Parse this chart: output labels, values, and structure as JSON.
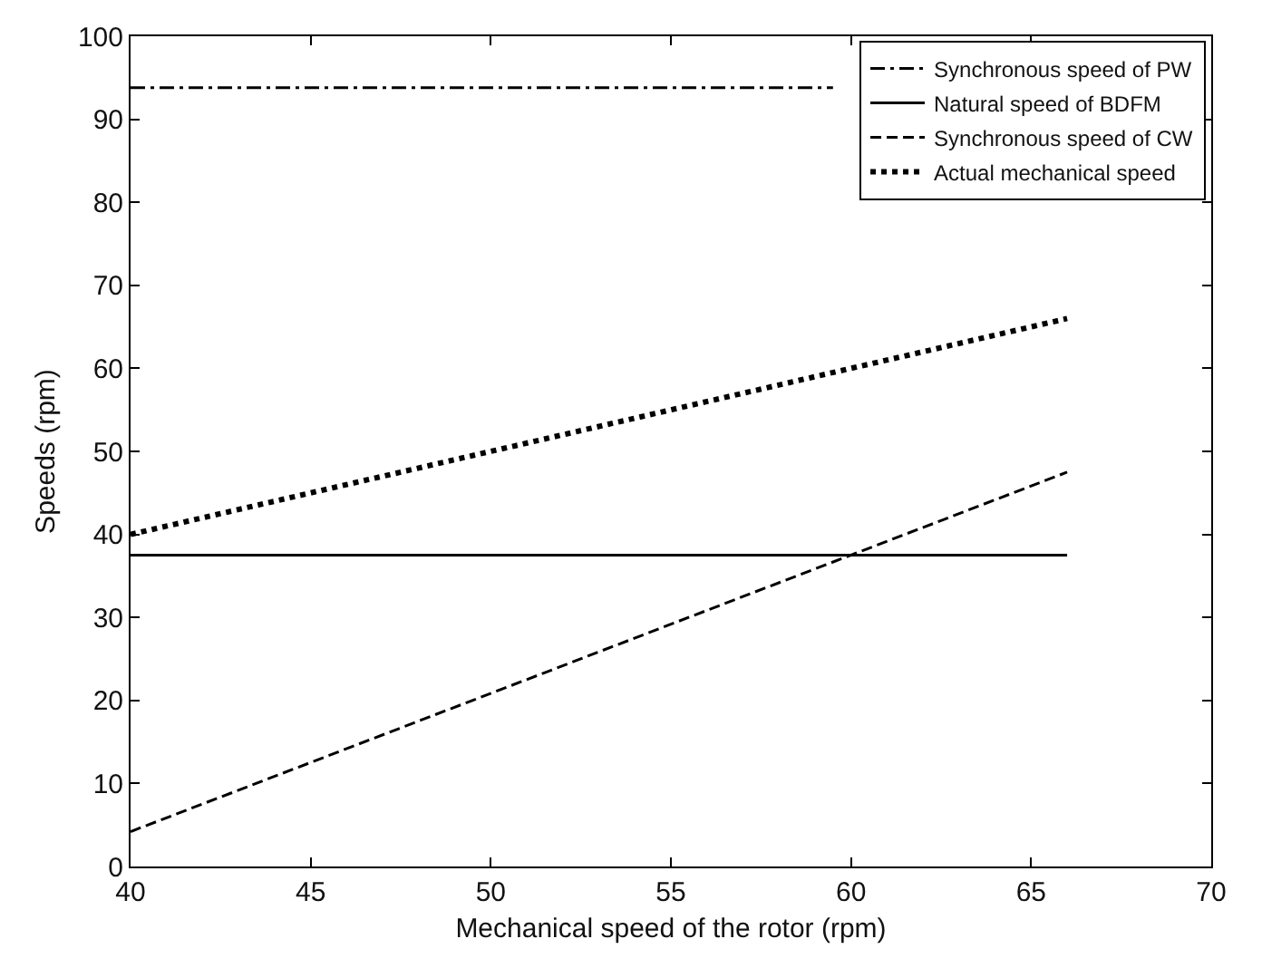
{
  "chart_data": {
    "type": "line",
    "xlabel": "Mechanical speed of the rotor (rpm)",
    "ylabel": "Speeds (rpm)",
    "series": [
      {
        "name": "Synchronous speed of PW",
        "color": "#000000",
        "line_style": "dashdot",
        "x": [
          40,
          59.5
        ],
        "values": [
          93.8,
          93.8
        ]
      },
      {
        "name": "Natural speed of BDFM",
        "color": "#000000",
        "line_style": "solid",
        "x": [
          40,
          66
        ],
        "values": [
          37.5,
          37.5
        ]
      },
      {
        "name": "Synchronous speed of CW",
        "color": "#000000",
        "line_style": "dashed",
        "x": [
          40,
          66
        ],
        "values": [
          4.2,
          47.5
        ]
      },
      {
        "name": "Actual mechanical speed",
        "color": "#000000",
        "line_style": "dotted",
        "x": [
          40,
          66
        ],
        "values": [
          40,
          66
        ]
      }
    ],
    "xlim": [
      40,
      70
    ],
    "xticks": [
      40,
      45,
      50,
      55,
      60,
      65,
      70
    ],
    "ylim": [
      0,
      100
    ],
    "yticks": [
      0,
      10,
      20,
      30,
      40,
      50,
      60,
      70,
      80,
      90,
      100
    ],
    "legend": "top right",
    "marker": "none"
  }
}
